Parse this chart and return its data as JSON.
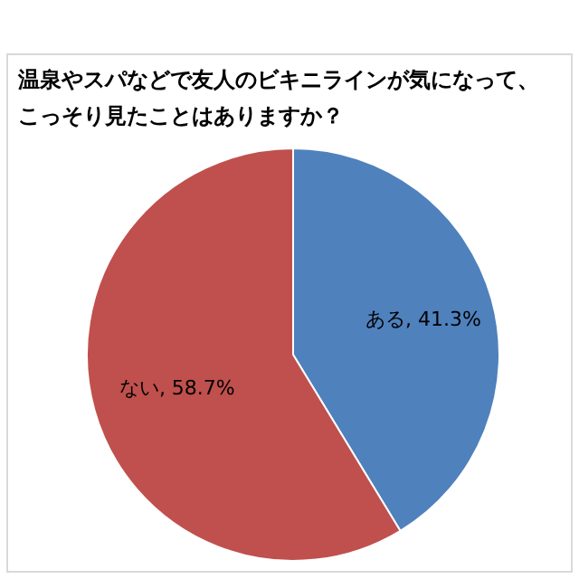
{
  "chart_data": {
    "type": "pie",
    "title": "温泉やスパなどで友人のビキニラインが気になって、こっそり見たことはありますか？",
    "categories": [
      "ある",
      "ない"
    ],
    "values": [
      41.3,
      58.7
    ],
    "colors": [
      "#4f81bd",
      "#c0504d"
    ],
    "value_labels": [
      ", 41.3%",
      ", 58.7%"
    ]
  }
}
